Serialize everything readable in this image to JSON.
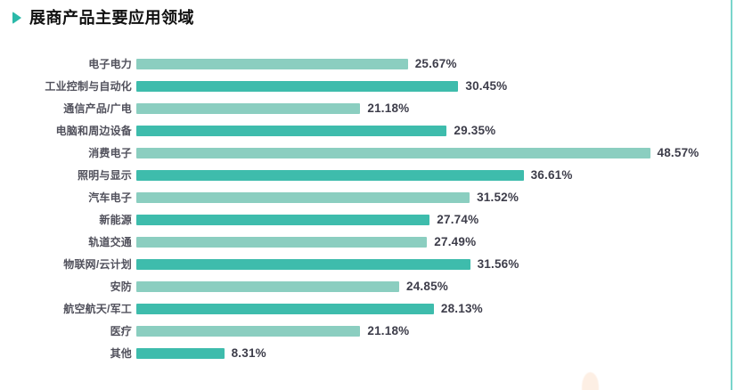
{
  "page": {
    "title": "展商产品主要应用领域"
  },
  "chart_data": {
    "type": "bar",
    "orientation": "horizontal",
    "title": "展商产品主要应用领域",
    "categories": [
      "电子电力",
      "工业控制与自动化",
      "通信产品/广电",
      "电脑和周边设备",
      "消费电子",
      "照明与显示",
      "汽车电子",
      "新能源",
      "轨道交通",
      "物联网/云计划",
      "安防",
      "航空航天/军工",
      "医疗",
      "其他"
    ],
    "values": [
      25.67,
      30.45,
      21.18,
      29.35,
      48.57,
      36.61,
      31.52,
      27.74,
      27.49,
      31.56,
      24.85,
      28.13,
      21.18,
      8.31
    ],
    "value_labels": [
      "25.67%",
      "30.45%",
      "21.18%",
      "29.35%",
      "48.57%",
      "36.61%",
      "31.52%",
      "27.74%",
      "27.49%",
      "31.56%",
      "24.85%",
      "28.13%",
      "21.18%",
      "8.31%"
    ],
    "xlabel": "",
    "ylabel": "",
    "xlim": [
      0,
      55
    ],
    "grid": false,
    "legend": false,
    "data_labels": "outside-end",
    "bar_colors_alternating": [
      "#8bcec0",
      "#3ebcac"
    ]
  },
  "decor": {
    "title_marker_color": "#2bb9a9",
    "right_border_color": "#79d5cc",
    "corner_shape_color": "#fdefe4"
  }
}
